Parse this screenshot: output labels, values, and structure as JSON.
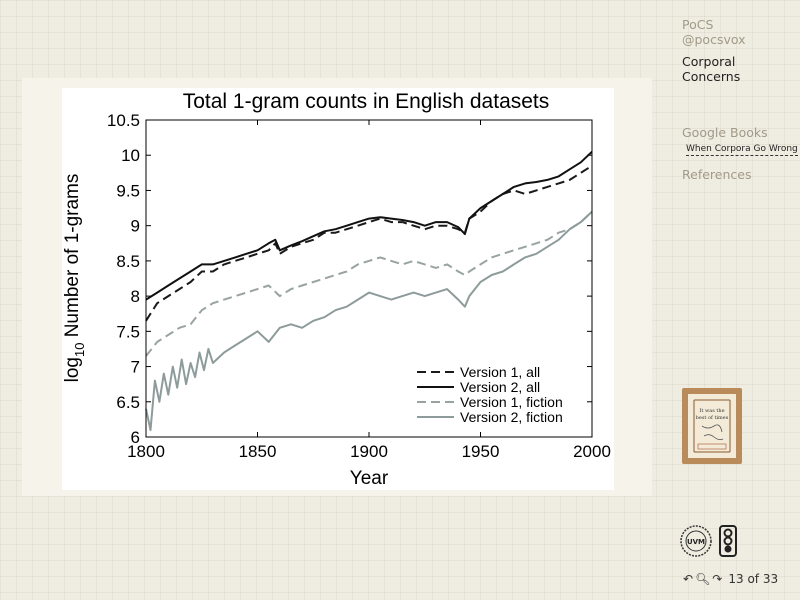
{
  "sidebar": {
    "course": "PoCS",
    "handle": "@pocsvox",
    "topic_line1": "Corporal",
    "topic_line2": "Concerns",
    "section": "Google Books",
    "subsection": "When Corpora Go Wrong",
    "references": "References"
  },
  "thumbnail_text": "It was the best of times",
  "footer": {
    "nav_icons": [
      "back-arrow-icon",
      "search-icon",
      "forward-arrow-icon"
    ],
    "page_counter": "13 of 33"
  },
  "chart_data": {
    "type": "line",
    "title": "Total 1-gram counts in English datasets",
    "xlabel": "Year",
    "ylabel_main": "log",
    "ylabel_sub": "10",
    "ylabel_rest": " Number of 1-grams",
    "xlim": [
      1800,
      2000
    ],
    "ylim": [
      6,
      10.5
    ],
    "xticks": [
      1800,
      1850,
      1900,
      1950,
      2000
    ],
    "yticks": [
      6,
      6.5,
      7,
      7.5,
      8,
      8.5,
      9,
      9.5,
      10,
      10.5
    ],
    "ytick_labels": [
      "6",
      "6.5",
      "7",
      "7.5",
      "8",
      "8.5",
      "9",
      "9.5",
      "10",
      "10.5"
    ],
    "grid": false,
    "legend_position": "bottom-right",
    "series": [
      {
        "name": "Version 1, all",
        "color": "#1a1a1a",
        "dash": "dashed",
        "x": [
          1800,
          1805,
          1810,
          1815,
          1820,
          1825,
          1830,
          1835,
          1840,
          1845,
          1850,
          1855,
          1858,
          1860,
          1865,
          1870,
          1875,
          1880,
          1885,
          1890,
          1895,
          1900,
          1905,
          1910,
          1915,
          1920,
          1925,
          1930,
          1935,
          1940,
          1943,
          1945,
          1950,
          1955,
          1960,
          1965,
          1970,
          1975,
          1980,
          1985,
          1990,
          1995,
          2000
        ],
        "y": [
          7.65,
          7.9,
          8.0,
          8.1,
          8.2,
          8.35,
          8.35,
          8.45,
          8.5,
          8.55,
          8.6,
          8.65,
          8.75,
          8.6,
          8.7,
          8.75,
          8.8,
          8.9,
          8.9,
          8.95,
          9.0,
          9.05,
          9.1,
          9.05,
          9.05,
          9.0,
          8.95,
          9.0,
          9.0,
          8.95,
          8.9,
          9.1,
          9.2,
          9.35,
          9.45,
          9.5,
          9.45,
          9.5,
          9.55,
          9.6,
          9.65,
          9.75,
          9.85
        ]
      },
      {
        "name": "Version 2, all",
        "color": "#111111",
        "dash": "solid",
        "x": [
          1800,
          1805,
          1810,
          1815,
          1820,
          1825,
          1830,
          1835,
          1840,
          1845,
          1850,
          1855,
          1858,
          1860,
          1865,
          1870,
          1875,
          1880,
          1885,
          1890,
          1895,
          1900,
          1905,
          1910,
          1915,
          1920,
          1925,
          1930,
          1935,
          1940,
          1943,
          1945,
          1950,
          1955,
          1960,
          1965,
          1970,
          1975,
          1980,
          1985,
          1990,
          1995,
          2000
        ],
        "y": [
          7.95,
          8.05,
          8.15,
          8.25,
          8.35,
          8.45,
          8.45,
          8.5,
          8.55,
          8.6,
          8.65,
          8.75,
          8.8,
          8.65,
          8.72,
          8.78,
          8.85,
          8.92,
          8.95,
          9.0,
          9.05,
          9.1,
          9.12,
          9.1,
          9.08,
          9.05,
          9.0,
          9.05,
          9.05,
          8.98,
          8.88,
          9.1,
          9.25,
          9.35,
          9.45,
          9.55,
          9.6,
          9.62,
          9.65,
          9.7,
          9.8,
          9.9,
          10.05
        ]
      },
      {
        "name": "Version 1, fiction",
        "color": "#9aa3a3",
        "dash": "dashed",
        "x": [
          1800,
          1805,
          1810,
          1815,
          1820,
          1825,
          1830,
          1835,
          1840,
          1845,
          1850,
          1855,
          1860,
          1865,
          1870,
          1875,
          1880,
          1885,
          1890,
          1895,
          1900,
          1905,
          1910,
          1915,
          1920,
          1925,
          1930,
          1935,
          1940,
          1943,
          1945,
          1950,
          1955,
          1960,
          1965,
          1970,
          1975,
          1980,
          1985,
          1990,
          1995,
          2000
        ],
        "y": [
          7.15,
          7.35,
          7.45,
          7.55,
          7.6,
          7.8,
          7.9,
          7.95,
          8.0,
          8.05,
          8.1,
          8.15,
          8.0,
          8.1,
          8.15,
          8.2,
          8.25,
          8.3,
          8.35,
          8.45,
          8.5,
          8.55,
          8.5,
          8.45,
          8.5,
          8.45,
          8.4,
          8.45,
          8.35,
          8.3,
          8.35,
          8.45,
          8.55,
          8.6,
          8.65,
          8.7,
          8.75,
          8.8,
          8.9,
          8.95,
          9.05,
          9.2
        ]
      },
      {
        "name": "Version 2, fiction",
        "color": "#8e9b9b",
        "dash": "solid",
        "x": [
          1800,
          1802,
          1804,
          1806,
          1808,
          1810,
          1812,
          1814,
          1816,
          1818,
          1820,
          1822,
          1824,
          1826,
          1828,
          1830,
          1835,
          1840,
          1845,
          1850,
          1855,
          1860,
          1865,
          1870,
          1875,
          1880,
          1885,
          1890,
          1895,
          1900,
          1905,
          1910,
          1915,
          1920,
          1925,
          1930,
          1935,
          1940,
          1943,
          1945,
          1950,
          1955,
          1960,
          1965,
          1970,
          1975,
          1980,
          1985,
          1990,
          1995,
          2000
        ],
        "y": [
          6.4,
          6.1,
          6.8,
          6.5,
          6.9,
          6.6,
          7.0,
          6.7,
          7.1,
          6.75,
          7.05,
          6.85,
          7.2,
          6.95,
          7.25,
          7.05,
          7.2,
          7.3,
          7.4,
          7.5,
          7.35,
          7.55,
          7.6,
          7.55,
          7.65,
          7.7,
          7.8,
          7.85,
          7.95,
          8.05,
          8.0,
          7.95,
          8.0,
          8.05,
          8.0,
          8.05,
          8.1,
          7.95,
          7.85,
          8.0,
          8.2,
          8.3,
          8.35,
          8.45,
          8.55,
          8.6,
          8.7,
          8.8,
          8.95,
          9.05,
          9.2
        ]
      }
    ]
  }
}
